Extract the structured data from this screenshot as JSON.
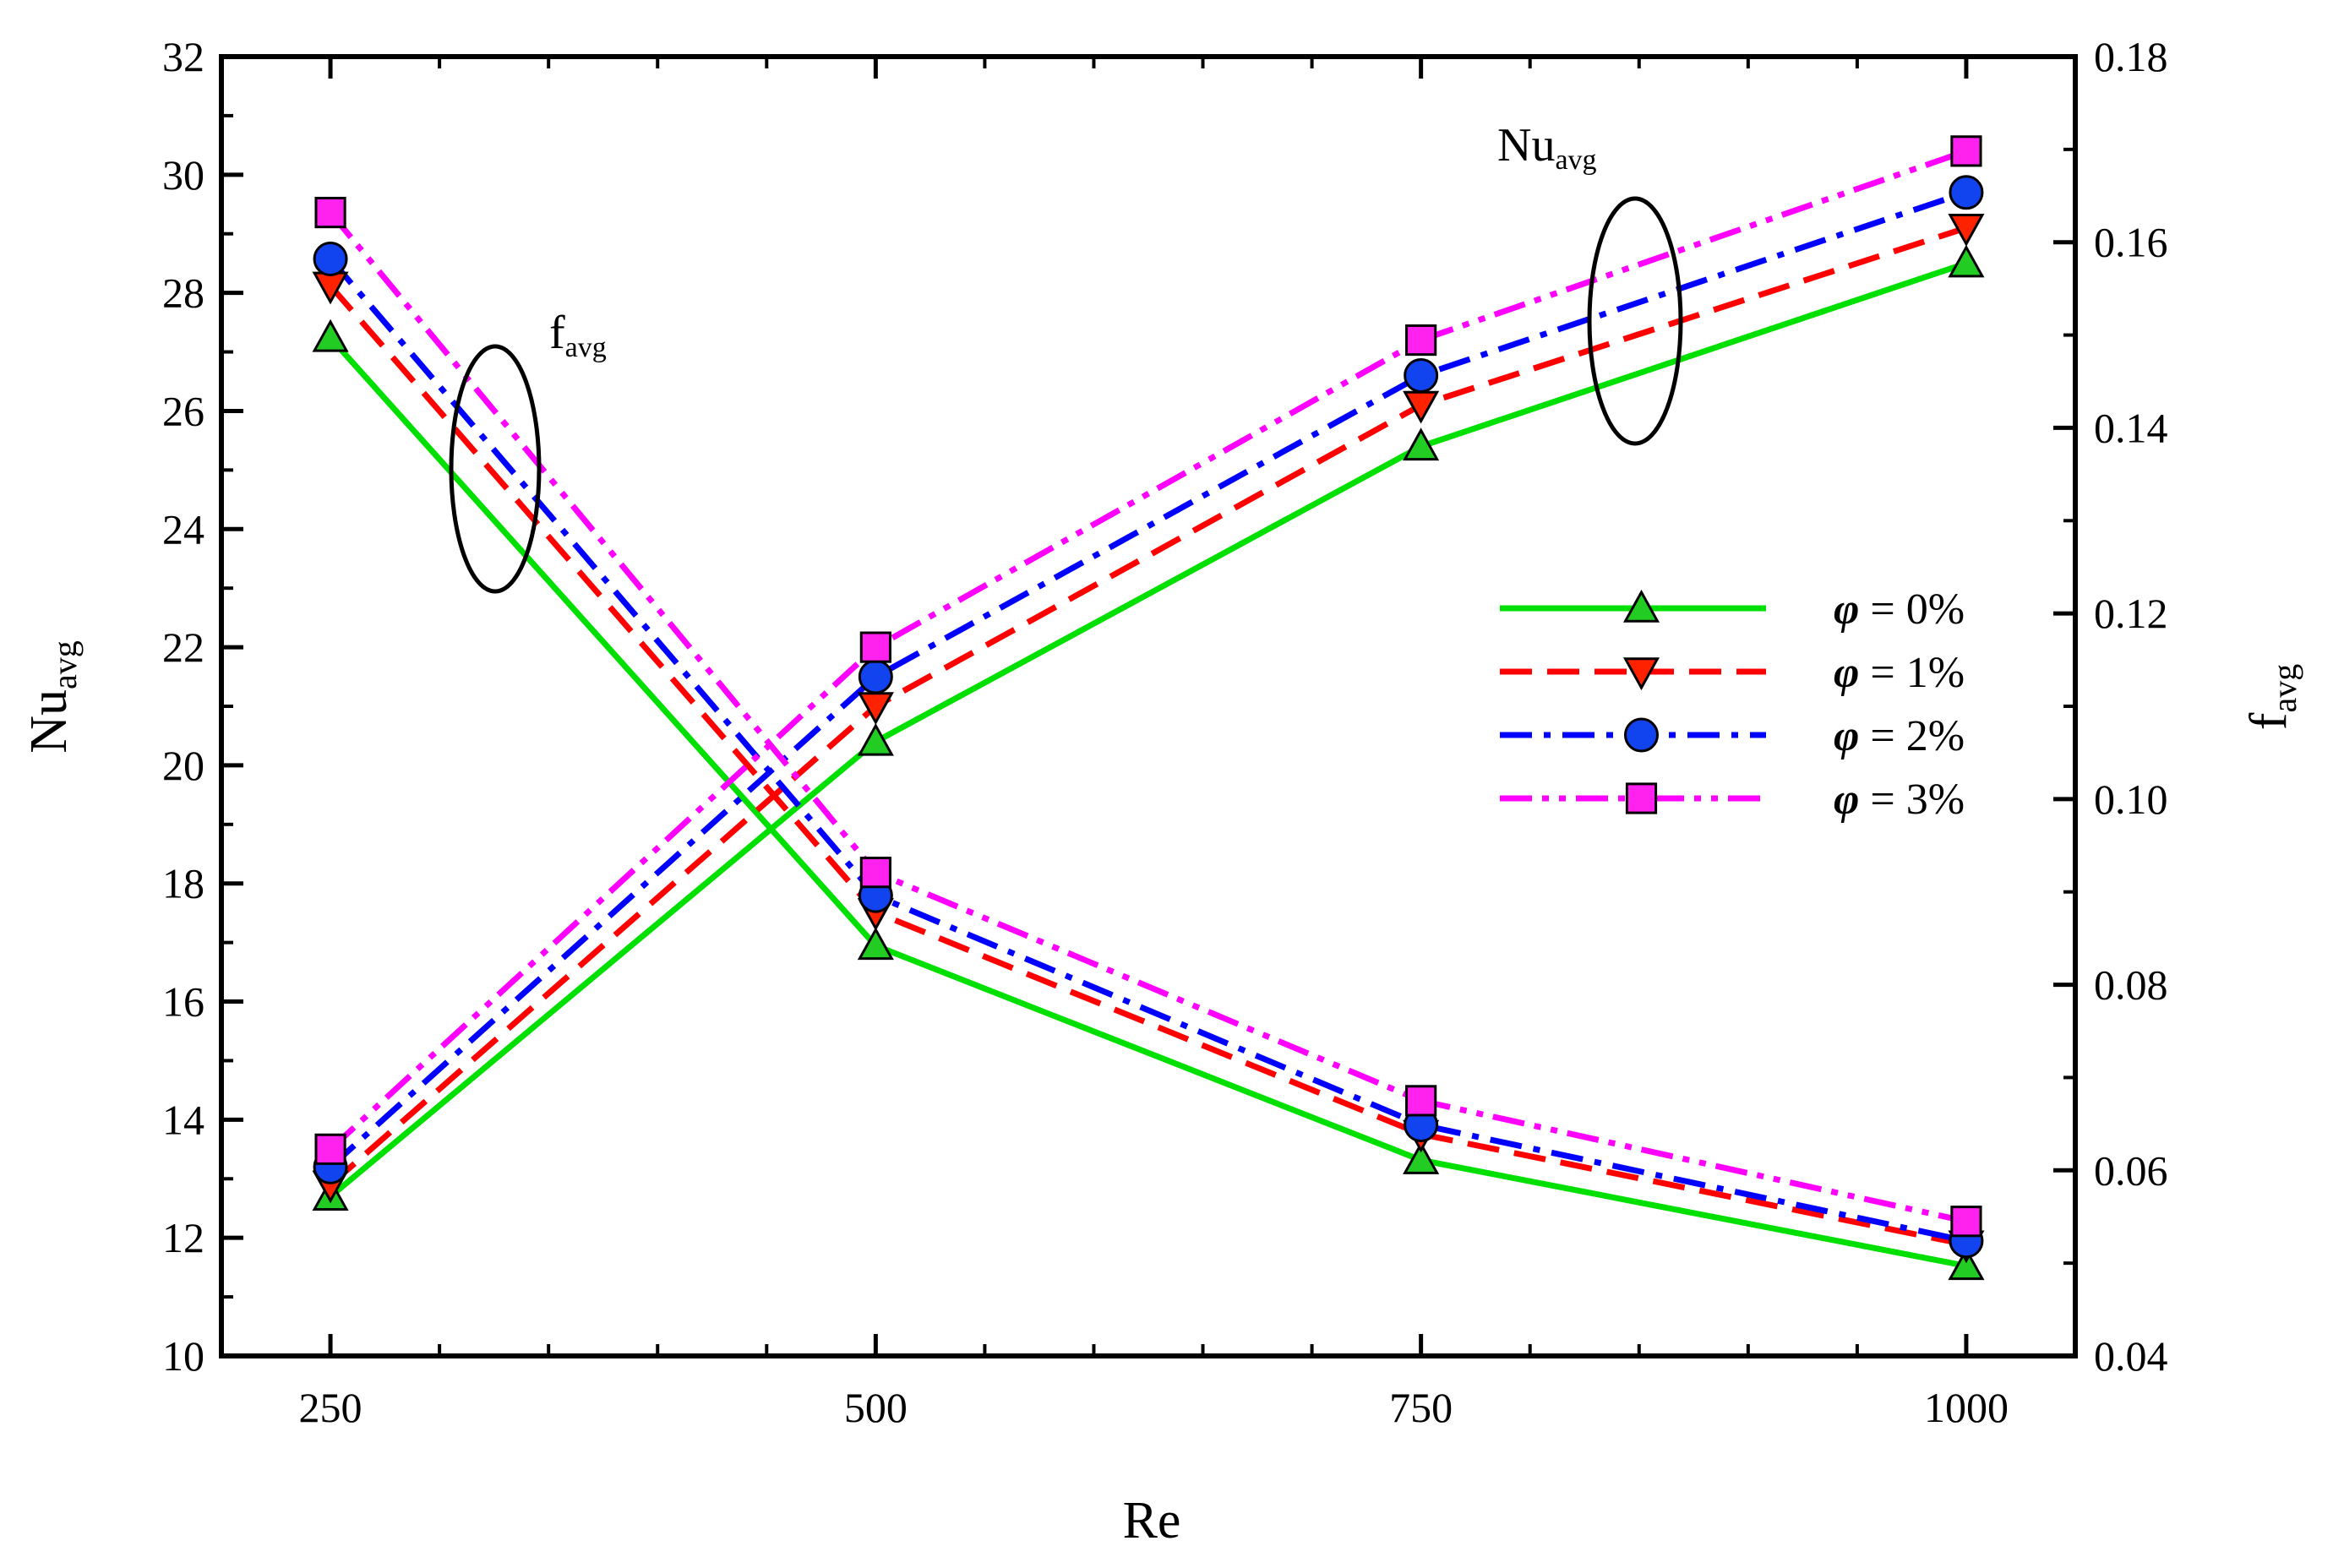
{
  "chart_data": {
    "type": "line",
    "xlabel": "Re",
    "ylabel_left": {
      "main": "Nu",
      "sub": "avg"
    },
    "ylabel_right": {
      "main": "f",
      "sub": "avg"
    },
    "categories": [
      "250",
      "500",
      "750",
      "1000"
    ],
    "x": [
      250,
      500,
      750,
      1000
    ],
    "xlim": [
      200,
      1050
    ],
    "ylim_left": [
      10,
      32
    ],
    "ylim_right": [
      0.04,
      0.18
    ],
    "left_ticks": [
      "10",
      "12",
      "14",
      "16",
      "18",
      "20",
      "22",
      "24",
      "26",
      "28",
      "30",
      "32"
    ],
    "right_ticks": [
      "0.04",
      "0.06",
      "0.08",
      "0.10",
      "0.12",
      "0.14",
      "0.16",
      "0.18"
    ],
    "series": [
      {
        "name": "φ = 0%",
        "phi_symbol": "φ",
        "phi_text": " = 0%",
        "color": "#00e000",
        "dash": "solid",
        "marker": "triangle-up",
        "marker_fill": "#22cc22",
        "nu_avg": [
          12.7,
          20.4,
          25.4,
          28.5
        ],
        "f_avg": [
          0.1497,
          0.0842,
          0.0611,
          0.0497
        ]
      },
      {
        "name": "φ = 1%",
        "phi_symbol": "φ",
        "phi_text": " = 1%",
        "color": "#ff0000",
        "dash": "dashed",
        "marker": "triangle-down",
        "marker_fill": "#ff2200",
        "nu_avg": [
          12.9,
          21.0,
          26.1,
          29.1
        ],
        "f_avg": [
          0.1553,
          0.0878,
          0.0639,
          0.052
        ]
      },
      {
        "name": "φ = 2%",
        "phi_symbol": "φ",
        "phi_text": " = 2%",
        "color": "#0000ff",
        "dash": "dashdot",
        "marker": "circle",
        "marker_fill": "#1144ee",
        "nu_avg": [
          13.2,
          21.5,
          26.6,
          29.7
        ],
        "f_avg": [
          0.1582,
          0.0896,
          0.0649,
          0.0524
        ]
      },
      {
        "name": "φ = 3%",
        "phi_symbol": "φ",
        "phi_text": " = 3%",
        "color": "#ff00ff",
        "dash": "dashdotdot",
        "marker": "square",
        "marker_fill": "#ff22ee",
        "nu_avg": [
          13.5,
          22.0,
          27.2,
          30.4
        ],
        "f_avg": [
          0.1632,
          0.0921,
          0.0675,
          0.0545
        ]
      }
    ],
    "annotations": [
      {
        "id": "f-group",
        "main": "f",
        "sub": "avg",
        "group": "f_avg curves"
      },
      {
        "id": "nu-group",
        "main": "Nu",
        "sub": "avg",
        "group": "Nu_avg curves"
      }
    ],
    "legend_position": "right-center"
  }
}
